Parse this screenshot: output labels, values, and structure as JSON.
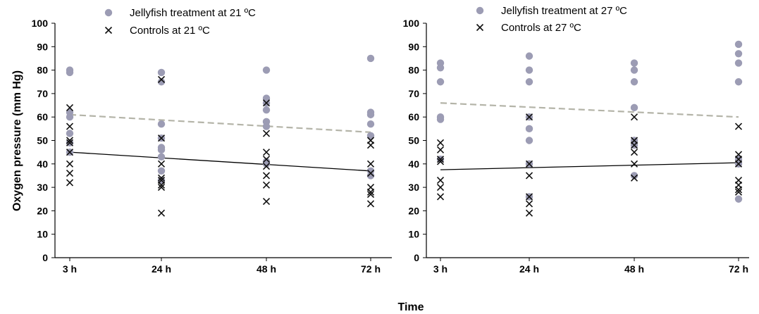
{
  "figure": {
    "ylabel": "Oxygen pressure (mm Hg)",
    "xlabel": "Time"
  },
  "colors": {
    "treatment": "#9c9cb4",
    "control": "#111111",
    "treatment_trend": "#b4b4a8",
    "control_trend": "#000000"
  },
  "chart_data": [
    {
      "type": "scatter",
      "categories": [
        "3 h",
        "24 h",
        "48 h",
        "72 h"
      ],
      "ylim": [
        0,
        100
      ],
      "yticks": [
        0,
        10,
        20,
        30,
        40,
        50,
        60,
        70,
        80,
        90,
        100
      ],
      "grid": false,
      "legend": "top-left",
      "series": [
        {
          "name": "Jellyfish treatment at 21 ºC",
          "marker": "circle",
          "points": [
            {
              "x": "3 h",
              "y": 80
            },
            {
              "x": "3 h",
              "y": 79
            },
            {
              "x": "3 h",
              "y": 62
            },
            {
              "x": "3 h",
              "y": 60
            },
            {
              "x": "3 h",
              "y": 53
            },
            {
              "x": "3 h",
              "y": 49
            },
            {
              "x": "3 h",
              "y": 45
            },
            {
              "x": "24 h",
              "y": 79
            },
            {
              "x": "24 h",
              "y": 75
            },
            {
              "x": "24 h",
              "y": 57
            },
            {
              "x": "24 h",
              "y": 51
            },
            {
              "x": "24 h",
              "y": 47
            },
            {
              "x": "24 h",
              "y": 46
            },
            {
              "x": "24 h",
              "y": 43
            },
            {
              "x": "24 h",
              "y": 37
            },
            {
              "x": "24 h",
              "y": 33
            },
            {
              "x": "48 h",
              "y": 80
            },
            {
              "x": "48 h",
              "y": 68
            },
            {
              "x": "48 h",
              "y": 66
            },
            {
              "x": "48 h",
              "y": 63
            },
            {
              "x": "48 h",
              "y": 58
            },
            {
              "x": "48 h",
              "y": 56
            },
            {
              "x": "48 h",
              "y": 41
            },
            {
              "x": "48 h",
              "y": 40
            },
            {
              "x": "72 h",
              "y": 85
            },
            {
              "x": "72 h",
              "y": 62
            },
            {
              "x": "72 h",
              "y": 61
            },
            {
              "x": "72 h",
              "y": 57
            },
            {
              "x": "72 h",
              "y": 52
            },
            {
              "x": "72 h",
              "y": 37
            },
            {
              "x": "72 h",
              "y": 35
            }
          ]
        },
        {
          "name": "Controls at 21 ºC",
          "marker": "x",
          "points": [
            {
              "x": "3 h",
              "y": 64
            },
            {
              "x": "3 h",
              "y": 56
            },
            {
              "x": "3 h",
              "y": 50
            },
            {
              "x": "3 h",
              "y": 49
            },
            {
              "x": "3 h",
              "y": 45
            },
            {
              "x": "3 h",
              "y": 40
            },
            {
              "x": "3 h",
              "y": 36
            },
            {
              "x": "3 h",
              "y": 32
            },
            {
              "x": "24 h",
              "y": 76
            },
            {
              "x": "24 h",
              "y": 51
            },
            {
              "x": "24 h",
              "y": 40
            },
            {
              "x": "24 h",
              "y": 34
            },
            {
              "x": "24 h",
              "y": 33
            },
            {
              "x": "24 h",
              "y": 31
            },
            {
              "x": "24 h",
              "y": 30
            },
            {
              "x": "24 h",
              "y": 19
            },
            {
              "x": "48 h",
              "y": 66
            },
            {
              "x": "48 h",
              "y": 53
            },
            {
              "x": "48 h",
              "y": 45
            },
            {
              "x": "48 h",
              "y": 42
            },
            {
              "x": "48 h",
              "y": 39
            },
            {
              "x": "48 h",
              "y": 35
            },
            {
              "x": "48 h",
              "y": 31
            },
            {
              "x": "48 h",
              "y": 24
            },
            {
              "x": "72 h",
              "y": 50
            },
            {
              "x": "72 h",
              "y": 48
            },
            {
              "x": "72 h",
              "y": 40
            },
            {
              "x": "72 h",
              "y": 36
            },
            {
              "x": "72 h",
              "y": 30
            },
            {
              "x": "72 h",
              "y": 28
            },
            {
              "x": "72 h",
              "y": 27
            },
            {
              "x": "72 h",
              "y": 23
            }
          ]
        }
      ],
      "trendlines": [
        {
          "series": "Jellyfish treatment at 21 ºC",
          "style": "dashed",
          "from": {
            "x": "3 h",
            "y": 61
          },
          "to": {
            "x": "72 h",
            "y": 53.5
          }
        },
        {
          "series": "Controls at 21 ºC",
          "style": "solid",
          "from": {
            "x": "3 h",
            "y": 45
          },
          "to": {
            "x": "72 h",
            "y": 37
          }
        }
      ]
    },
    {
      "type": "scatter",
      "categories": [
        "3 h",
        "24 h",
        "48 h",
        "72 h"
      ],
      "ylim": [
        0,
        100
      ],
      "yticks": [
        0,
        10,
        20,
        30,
        40,
        50,
        60,
        70,
        80,
        90,
        100
      ],
      "grid": false,
      "legend": "top-left",
      "series": [
        {
          "name": "Jellyfish treatment at 27 ºC",
          "marker": "circle",
          "points": [
            {
              "x": "3 h",
              "y": 83
            },
            {
              "x": "3 h",
              "y": 81
            },
            {
              "x": "3 h",
              "y": 75
            },
            {
              "x": "3 h",
              "y": 60
            },
            {
              "x": "3 h",
              "y": 59
            },
            {
              "x": "3 h",
              "y": 42
            },
            {
              "x": "24 h",
              "y": 86
            },
            {
              "x": "24 h",
              "y": 80
            },
            {
              "x": "24 h",
              "y": 75
            },
            {
              "x": "24 h",
              "y": 60
            },
            {
              "x": "24 h",
              "y": 55
            },
            {
              "x": "24 h",
              "y": 50
            },
            {
              "x": "24 h",
              "y": 40
            },
            {
              "x": "24 h",
              "y": 26
            },
            {
              "x": "48 h",
              "y": 83
            },
            {
              "x": "48 h",
              "y": 80
            },
            {
              "x": "48 h",
              "y": 75
            },
            {
              "x": "48 h",
              "y": 64
            },
            {
              "x": "48 h",
              "y": 50
            },
            {
              "x": "48 h",
              "y": 48
            },
            {
              "x": "48 h",
              "y": 35
            },
            {
              "x": "72 h",
              "y": 91
            },
            {
              "x": "72 h",
              "y": 87
            },
            {
              "x": "72 h",
              "y": 83
            },
            {
              "x": "72 h",
              "y": 75
            },
            {
              "x": "72 h",
              "y": 42
            },
            {
              "x": "72 h",
              "y": 40
            },
            {
              "x": "72 h",
              "y": 25
            }
          ]
        },
        {
          "name": "Controls at 27 ºC",
          "marker": "x",
          "points": [
            {
              "x": "3 h",
              "y": 49
            },
            {
              "x": "3 h",
              "y": 46
            },
            {
              "x": "3 h",
              "y": 42
            },
            {
              "x": "3 h",
              "y": 41
            },
            {
              "x": "3 h",
              "y": 33
            },
            {
              "x": "3 h",
              "y": 30
            },
            {
              "x": "3 h",
              "y": 26
            },
            {
              "x": "24 h",
              "y": 60
            },
            {
              "x": "24 h",
              "y": 40
            },
            {
              "x": "24 h",
              "y": 35
            },
            {
              "x": "24 h",
              "y": 26
            },
            {
              "x": "24 h",
              "y": 23
            },
            {
              "x": "24 h",
              "y": 19
            },
            {
              "x": "48 h",
              "y": 60
            },
            {
              "x": "48 h",
              "y": 50
            },
            {
              "x": "48 h",
              "y": 48
            },
            {
              "x": "48 h",
              "y": 45
            },
            {
              "x": "48 h",
              "y": 40
            },
            {
              "x": "48 h",
              "y": 34
            },
            {
              "x": "72 h",
              "y": 56
            },
            {
              "x": "72 h",
              "y": 44
            },
            {
              "x": "72 h",
              "y": 42
            },
            {
              "x": "72 h",
              "y": 40
            },
            {
              "x": "72 h",
              "y": 33
            },
            {
              "x": "72 h",
              "y": 31
            },
            {
              "x": "72 h",
              "y": 29
            },
            {
              "x": "72 h",
              "y": 28
            }
          ]
        }
      ],
      "trendlines": [
        {
          "series": "Jellyfish treatment at 27 ºC",
          "style": "dashed",
          "from": {
            "x": "3 h",
            "y": 66
          },
          "to": {
            "x": "72 h",
            "y": 60
          }
        },
        {
          "series": "Controls at 27 ºC",
          "style": "solid",
          "from": {
            "x": "3 h",
            "y": 37.5
          },
          "to": {
            "x": "72 h",
            "y": 40.5
          }
        }
      ]
    }
  ]
}
